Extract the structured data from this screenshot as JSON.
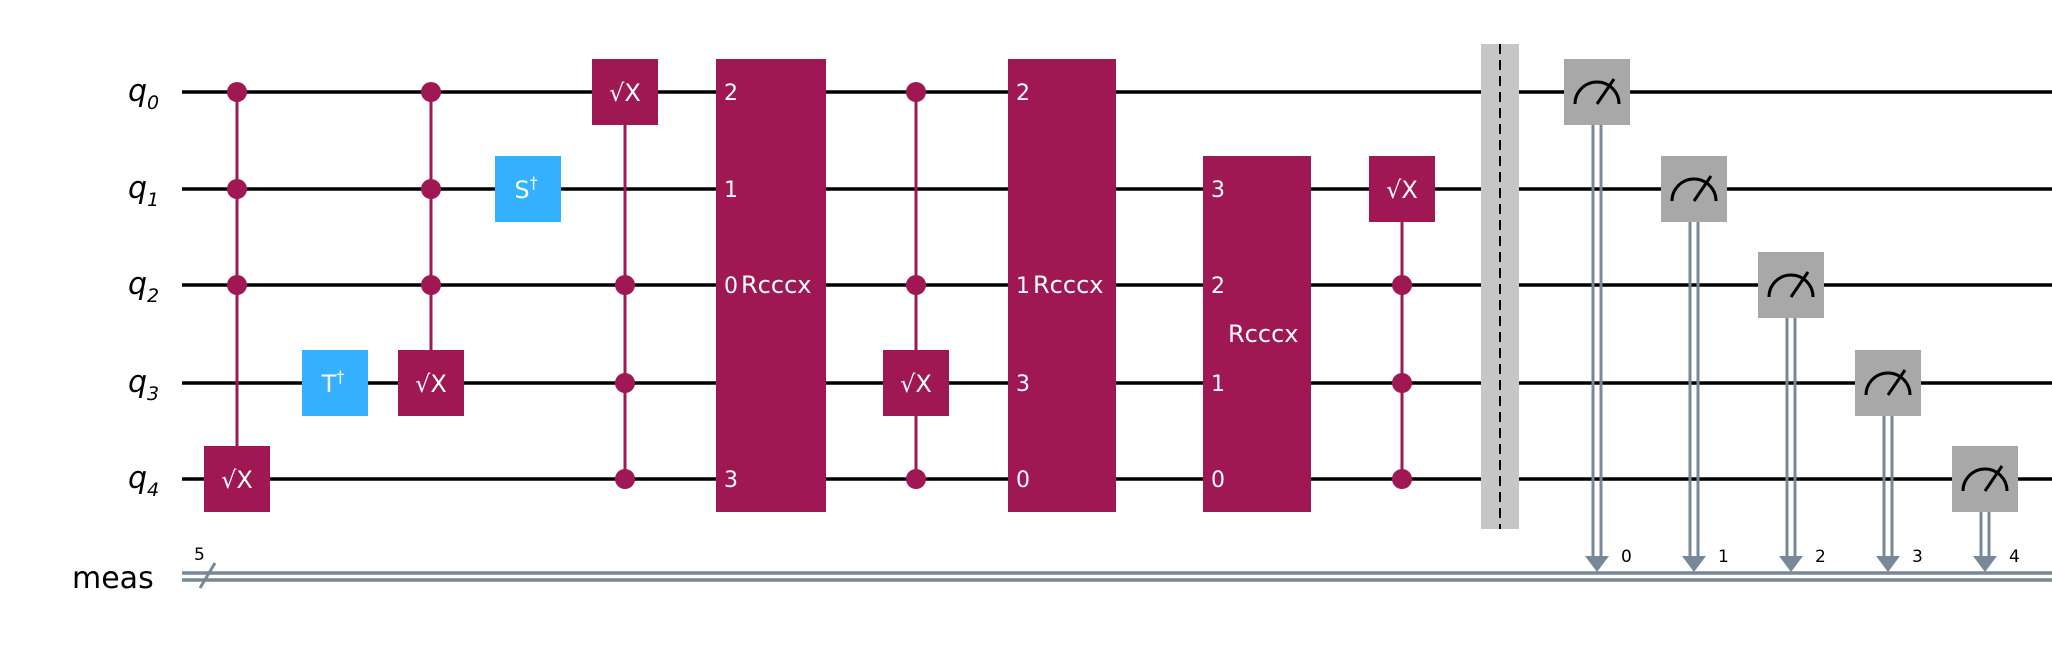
{
  "colors": {
    "wire": "#000000",
    "classical_wire": "#778899",
    "control_gate": "#9f1853",
    "clifford_gate": "#33b1ff",
    "measure_gate": "#a8a8a8",
    "barrier": "#c6c6c6"
  },
  "qubits": [
    {
      "base": "q",
      "index": "0"
    },
    {
      "base": "q",
      "index": "1"
    },
    {
      "base": "q",
      "index": "2"
    },
    {
      "base": "q",
      "index": "3"
    },
    {
      "base": "q",
      "index": "4"
    }
  ],
  "classical_register": {
    "label": "meas",
    "size": "5"
  },
  "gates": {
    "sx": "√X",
    "s_dagger": {
      "base": "S",
      "sup": "†"
    },
    "t_dagger": {
      "base": "T",
      "sup": "†"
    },
    "rcccx": "Rcccx"
  },
  "rcccx_blocks": [
    {
      "pins": [
        "2",
        "1",
        "0",
        "",
        "3"
      ]
    },
    {
      "pins": [
        "2",
        "",
        "1",
        "3",
        "0"
      ]
    },
    {
      "pins": [
        "3",
        "2",
        "1",
        "0"
      ]
    }
  ],
  "measure_bits": [
    "0",
    "1",
    "2",
    "3",
    "4"
  ],
  "icons": {
    "measure": "meter-icon",
    "control": "control-dot-icon",
    "barrier": "barrier-icon",
    "bundle": "bundle-slash-icon"
  }
}
